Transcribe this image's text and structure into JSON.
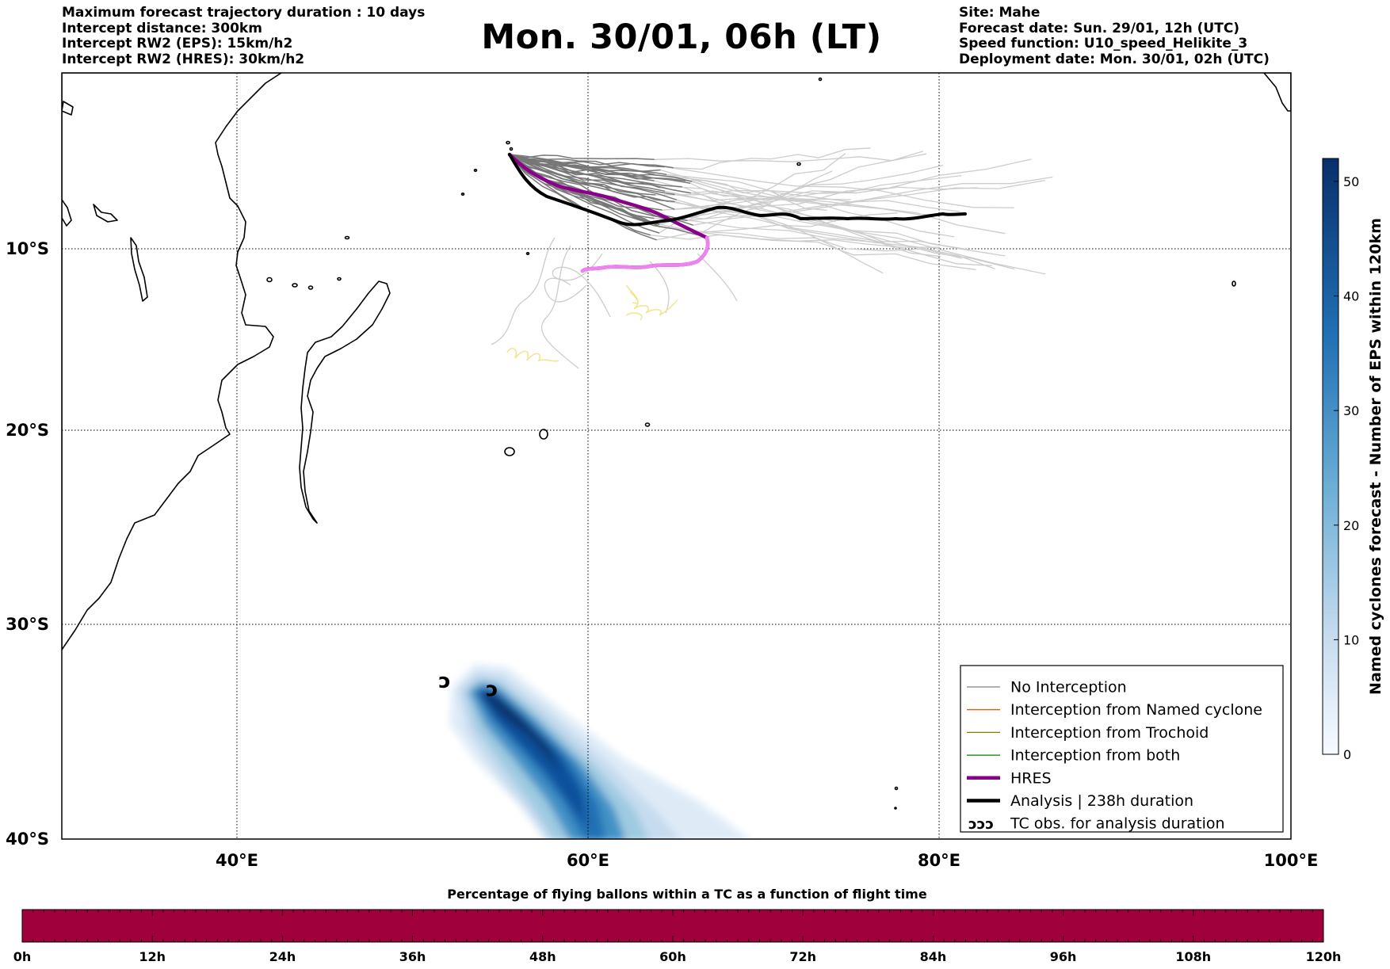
{
  "header": {
    "title": "Mon. 30/01, 06h (LT)",
    "left_lines": [
      "Maximum forecast trajectory duration : 10 days",
      "Intercept distance: 300km",
      "Intercept RW2 (EPS):  15km/h2",
      "Intercept RW2 (HRES): 30km/h2"
    ],
    "right_lines": [
      "Site: Mahe",
      "Forecast date: Sun. 29/01, 12h (UTC)",
      "Speed function: U10_speed_Helikite_3",
      "Deployment date: Mon. 30/01, 02h (UTC)"
    ]
  },
  "map": {
    "lon_ticks": [
      "40°E",
      "60°E",
      "80°E",
      "100°E"
    ],
    "lat_ticks": [
      "10°S",
      "20°S",
      "30°S",
      "40°S"
    ],
    "extent": {
      "lon": [
        30,
        100
      ],
      "lat": [
        -40,
        0
      ]
    }
  },
  "legend": {
    "items": [
      {
        "label": "No Interception",
        "color": "#808080",
        "style": "thin"
      },
      {
        "label": "Interception from Named cyclone",
        "color": "#ff5500",
        "style": "thin"
      },
      {
        "label": "Interception from Trochoid",
        "color": "#808000",
        "style": "thin"
      },
      {
        "label": "Interception from both",
        "color": "#008000",
        "style": "thin"
      },
      {
        "label": "HRES",
        "color": "#8b008b",
        "style": "thick"
      },
      {
        "label": "Analysis | 238h duration",
        "color": "#000000",
        "style": "thick"
      },
      {
        "label": "TC obs. for analysis duration",
        "color": "#000000",
        "style": "symbol",
        "symbol": "ↄↄↄ"
      }
    ]
  },
  "colorbar_right": {
    "label": "Named cyclones forecast - Number of EPS within 120km",
    "ticks": [
      "0",
      "10",
      "20",
      "30",
      "40",
      "50"
    ],
    "max": 52
  },
  "colorbar_bottom": {
    "title": "Percentage of flying ballons within a TC as a function of flight time",
    "ticks": [
      "0h",
      "12h",
      "24h",
      "36h",
      "48h",
      "60h",
      "72h",
      "84h",
      "96h",
      "108h",
      "120h"
    ],
    "color": "#a0003c"
  },
  "tc_obs": [
    {
      "lon": 51.8,
      "lat": -32.8
    },
    {
      "lon": 54.5,
      "lat": -33.2
    }
  ]
}
